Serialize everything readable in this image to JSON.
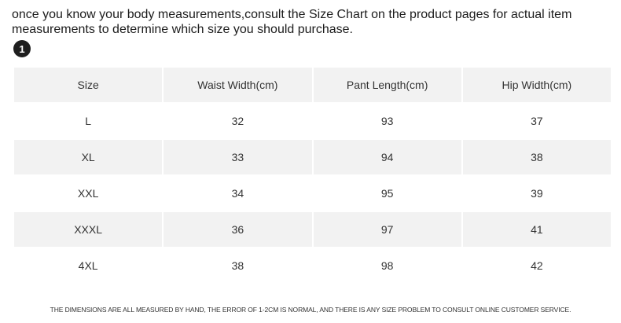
{
  "intro_text": "once you know your body measurements,consult the Size Chart on the product pages for actual item measurements to determine which size you should purchase.",
  "step_number": "1",
  "table": {
    "headers": [
      "Size",
      "Waist Width(cm)",
      "Pant Length(cm)",
      "Hip Width(cm)"
    ],
    "rows": [
      [
        "L",
        "32",
        "93",
        "37"
      ],
      [
        "XL",
        "33",
        "94",
        "38"
      ],
      [
        "XXL",
        "34",
        "95",
        "39"
      ],
      [
        "XXXL",
        "36",
        "97",
        "41"
      ],
      [
        "4XL",
        "38",
        "98",
        "42"
      ]
    ]
  },
  "footnote": "THE DIMENSIONS ARE ALL MEASURED BY HAND, THE ERROR OF 1-2CM IS NORMAL, AND THERE IS ANY SIZE PROBLEM TO CONSULT ONLINE CUSTOMER SERVICE.",
  "colors": {
    "header_bg": "#f2f2f2",
    "stripe_bg": "#f2f2f2",
    "badge_bg": "#1e1e1e"
  }
}
